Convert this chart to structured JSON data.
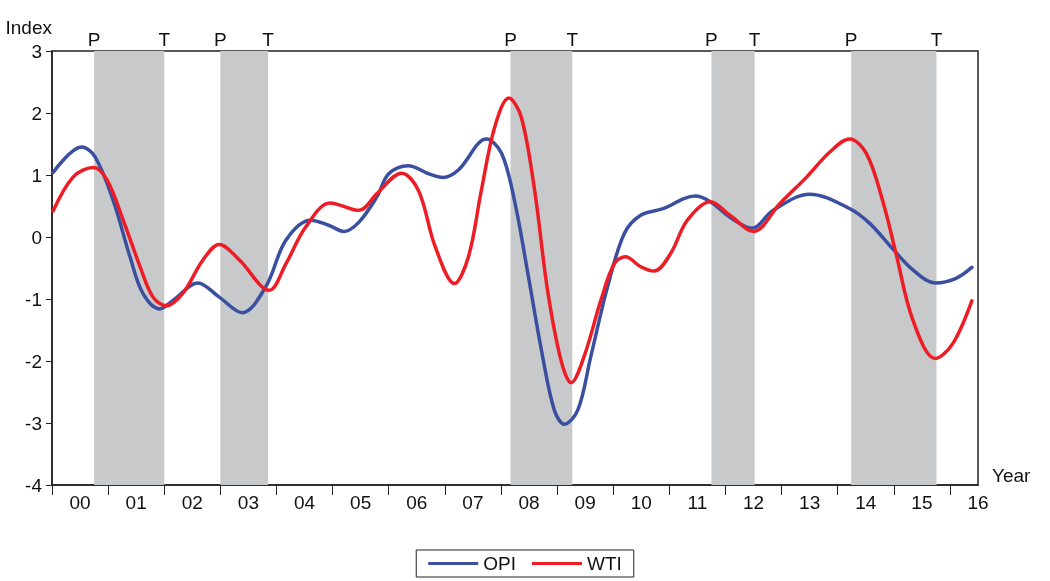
{
  "chart_data": {
    "type": "line",
    "xlabel": "Year",
    "ylabel": "Index",
    "xlim": [
      -0.5,
      16
    ],
    "ylim": [
      -4,
      3
    ],
    "yticks": [
      -4,
      -3,
      -2,
      -1,
      0,
      1,
      2,
      3
    ],
    "xticks": [
      {
        "value": -0.5,
        "label": null
      },
      {
        "value": 0.5,
        "label": null
      },
      {
        "value": 1.5,
        "label": null
      },
      {
        "value": 2.5,
        "label": null
      },
      {
        "value": 3.5,
        "label": null
      },
      {
        "value": 4.5,
        "label": null
      },
      {
        "value": 5.5,
        "label": null
      },
      {
        "value": 6.5,
        "label": null
      },
      {
        "value": 7.5,
        "label": null
      },
      {
        "value": 8.5,
        "label": null
      },
      {
        "value": 9.5,
        "label": null
      },
      {
        "value": 10.5,
        "label": null
      },
      {
        "value": 11.5,
        "label": null
      },
      {
        "value": 12.5,
        "label": null
      },
      {
        "value": 13.5,
        "label": null
      },
      {
        "value": 14.5,
        "label": null
      },
      {
        "value": 15.5,
        "label": null
      },
      {
        "value": 0,
        "label": "00"
      },
      {
        "value": 1,
        "label": "01"
      },
      {
        "value": 2,
        "label": "02"
      },
      {
        "value": 3,
        "label": "03"
      },
      {
        "value": 4,
        "label": "04"
      },
      {
        "value": 5,
        "label": "05"
      },
      {
        "value": 6,
        "label": "06"
      },
      {
        "value": 7,
        "label": "07"
      },
      {
        "value": 8,
        "label": "08"
      },
      {
        "value": 9,
        "label": "09"
      },
      10,
      11,
      12,
      13,
      14,
      15,
      16
    ],
    "grid": false,
    "legend": "bottom",
    "marker": "none",
    "line_style": "solid",
    "series": [
      {
        "name": "OPI",
        "color": "#3a4fa0",
        "x": [
          -0.48,
          0.03,
          0.27,
          0.59,
          0.89,
          1.12,
          1.42,
          1.66,
          2.1,
          2.48,
          2.89,
          3.31,
          3.67,
          4.11,
          4.43,
          4.7,
          4.97,
          5.29,
          5.5,
          5.85,
          6.21,
          6.47,
          6.74,
          7.24,
          7.51,
          7.74,
          7.98,
          8.22,
          8.45,
          8.63,
          8.87,
          9.1,
          9.4,
          9.7,
          9.99,
          10.4,
          10.76,
          10.96,
          11.23,
          11.58,
          11.97,
          12.35,
          13.0,
          13.71,
          14.07,
          14.48,
          14.84,
          15.24,
          15.6,
          15.89
        ],
        "values": [
          1.04,
          1.45,
          1.29,
          0.59,
          -0.32,
          -0.91,
          -1.16,
          -1.02,
          -0.74,
          -0.97,
          -1.22,
          -0.8,
          -0.05,
          0.27,
          0.19,
          0.09,
          0.24,
          0.65,
          1.02,
          1.15,
          1.02,
          0.96,
          1.08,
          1.58,
          1.35,
          0.59,
          -0.59,
          -1.82,
          -2.79,
          -3.02,
          -2.79,
          -1.93,
          -0.8,
          0.06,
          0.35,
          0.46,
          0.62,
          0.66,
          0.57,
          0.32,
          0.14,
          0.43,
          0.69,
          0.46,
          0.22,
          -0.19,
          -0.53,
          -0.74,
          -0.67,
          -0.49
        ]
      },
      {
        "name": "WTI",
        "color": "#ee1c25",
        "x": [
          -0.48,
          -0.12,
          0.24,
          0.48,
          0.77,
          1.07,
          1.3,
          1.54,
          1.83,
          2.19,
          2.48,
          2.84,
          3.37,
          3.67,
          4.02,
          4.46,
          4.97,
          5.29,
          5.73,
          6.03,
          6.33,
          6.67,
          6.92,
          7.15,
          7.39,
          7.64,
          7.86,
          8.1,
          8.33,
          8.57,
          8.75,
          8.98,
          9.28,
          9.52,
          9.72,
          9.99,
          10.23,
          10.52,
          10.82,
          11.23,
          11.58,
          12.0,
          12.47,
          12.95,
          13.36,
          13.71,
          14.01,
          14.3,
          14.54,
          14.84,
          15.24,
          15.55,
          15.89
        ],
        "values": [
          0.42,
          0.97,
          1.12,
          0.92,
          0.27,
          -0.48,
          -0.97,
          -1.11,
          -0.91,
          -0.37,
          -0.12,
          -0.37,
          -0.86,
          -0.43,
          0.16,
          0.55,
          0.43,
          0.7,
          1.03,
          0.75,
          -0.16,
          -0.75,
          -0.32,
          0.75,
          1.78,
          2.24,
          1.94,
          0.75,
          -0.86,
          -1.99,
          -2.35,
          -1.93,
          -1.02,
          -0.43,
          -0.32,
          -0.48,
          -0.55,
          -0.27,
          0.27,
          0.57,
          0.35,
          0.09,
          0.54,
          0.97,
          1.37,
          1.58,
          1.35,
          0.59,
          -0.27,
          -1.34,
          -1.96,
          -1.72,
          -1.03
        ]
      }
    ],
    "bands": [
      {
        "axis": "x",
        "from": 0.25,
        "to": 1.5,
        "color": "#c8c9cb"
      },
      {
        "axis": "x",
        "from": 2.5,
        "to": 3.35,
        "color": "#c8c9cb"
      },
      {
        "axis": "x",
        "from": 7.67,
        "to": 8.77,
        "color": "#c8c9cb"
      },
      {
        "axis": "x",
        "from": 11.25,
        "to": 12.02,
        "color": "#c8c9cb"
      },
      {
        "axis": "x",
        "from": 13.74,
        "to": 15.26,
        "color": "#c8c9cb"
      }
    ],
    "annotations": [
      {
        "text": "P",
        "x": 0.25,
        "y": 3
      },
      {
        "text": "T",
        "x": 1.5,
        "y": 3
      },
      {
        "text": "P",
        "x": 2.5,
        "y": 3
      },
      {
        "text": "T",
        "x": 3.35,
        "y": 3
      },
      {
        "text": "P",
        "x": 7.67,
        "y": 3
      },
      {
        "text": "T",
        "x": 8.77,
        "y": 3
      },
      {
        "text": "P",
        "x": 11.25,
        "y": 3
      },
      {
        "text": "T",
        "x": 12.02,
        "y": 3
      },
      {
        "text": "P",
        "x": 13.74,
        "y": 3
      },
      {
        "text": "T",
        "x": 15.26,
        "y": 3
      }
    ]
  }
}
